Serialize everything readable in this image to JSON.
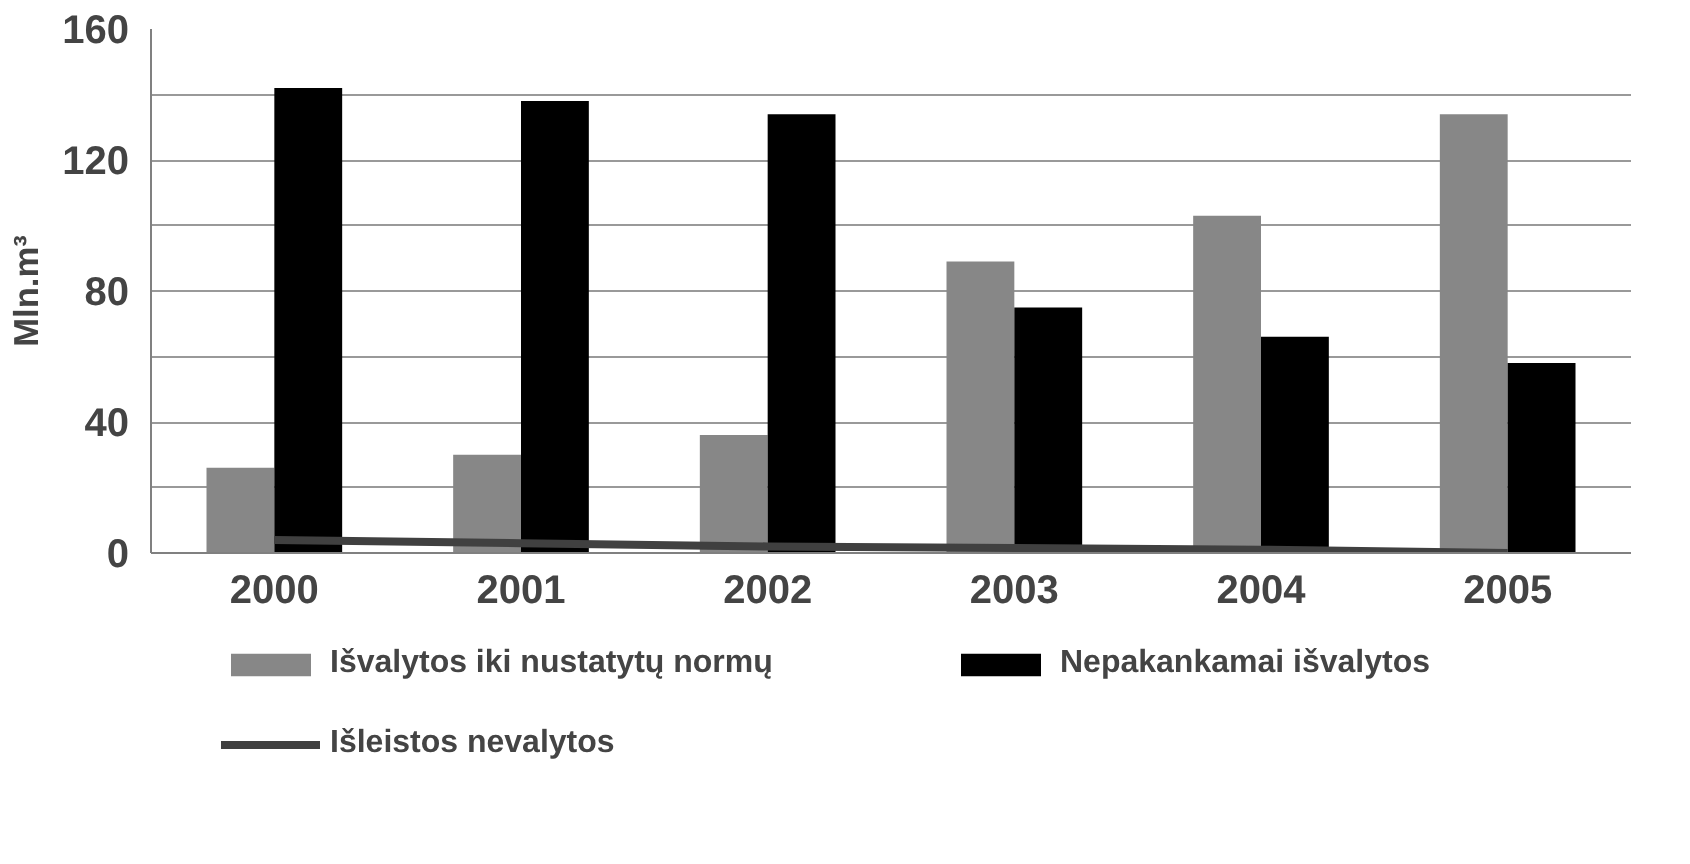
{
  "chart_data": {
    "type": "bar",
    "ylabel": "Mln.m³",
    "categories": [
      "2000",
      "2001",
      "2002",
      "2003",
      "2004",
      "2005"
    ],
    "series": [
      {
        "name": "Išvalytos iki nustatytų normų",
        "color": "#878787",
        "values": [
          26,
          30,
          36,
          89,
          103,
          134
        ]
      },
      {
        "name": "Nepakankamai išvalytos",
        "color": "#000000",
        "values": [
          142,
          138,
          134,
          75,
          66,
          58
        ]
      },
      {
        "name": "Išleistos nevalytos",
        "type": "line",
        "color": "#404040",
        "values": [
          4,
          3,
          2,
          1.5,
          1,
          0
        ]
      }
    ],
    "ylim": [
      0,
      160
    ],
    "yticks": [
      0,
      {
        "value": 20,
        "label": null
      },
      40,
      {
        "value": 60,
        "label": null
      },
      80,
      {
        "value": 100,
        "label": null
      },
      120,
      {
        "value": 140,
        "label": null
      },
      160
    ],
    "grid": "y",
    "legend": "bottom"
  }
}
